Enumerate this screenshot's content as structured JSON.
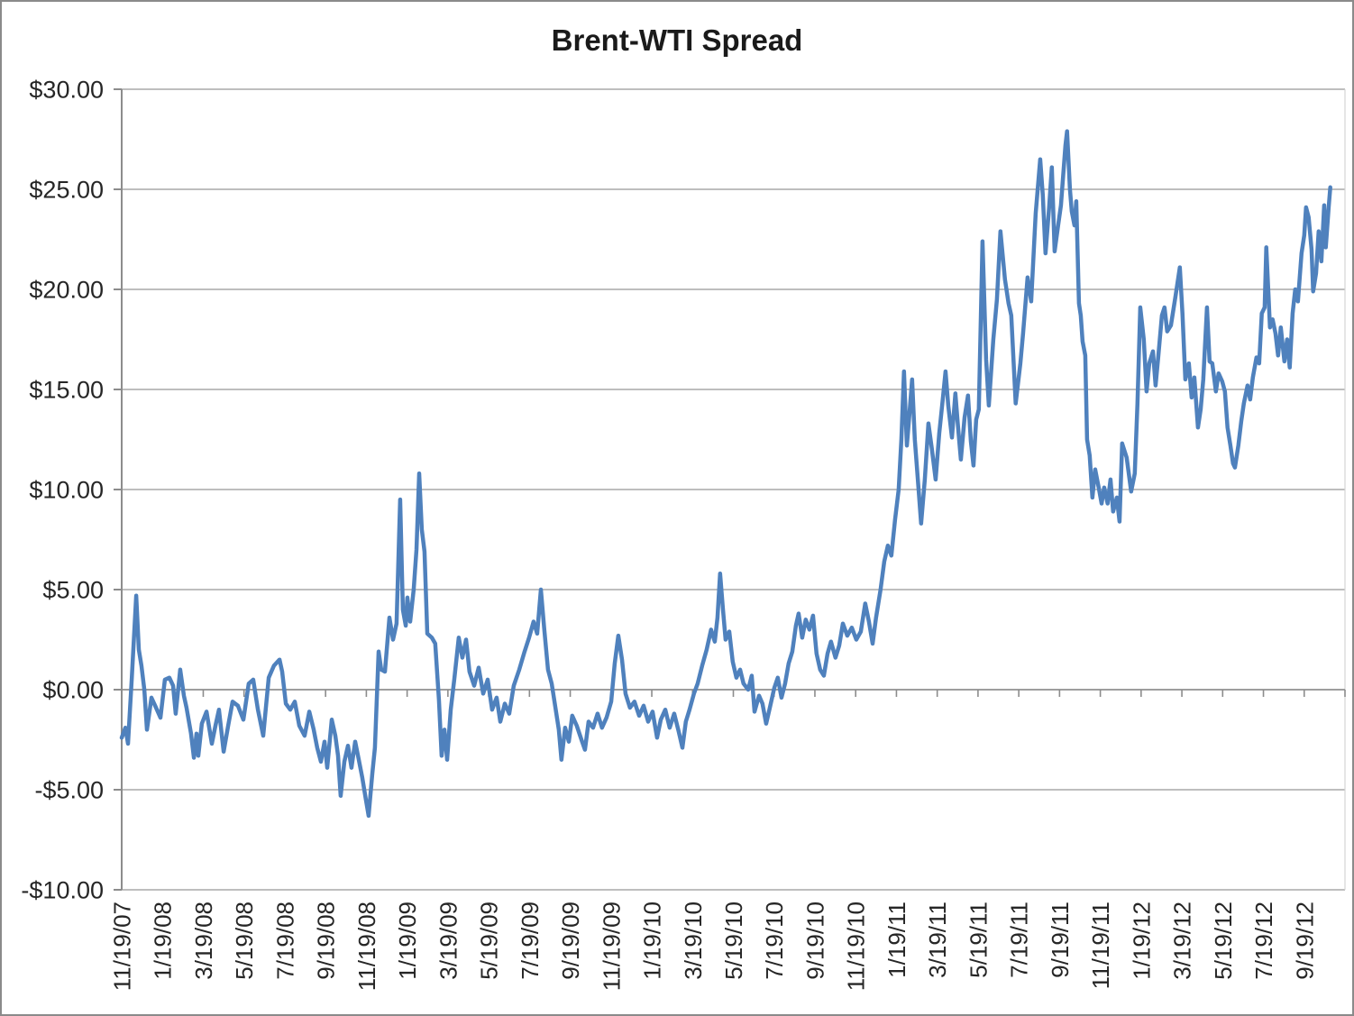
{
  "chart_data": {
    "type": "line",
    "title": "Brent-WTI Spread",
    "series_name": "Brent-WTI Spread",
    "x_unit": "months since 11/19/2007",
    "x_range": [
      0,
      60
    ],
    "y_range": [
      -10,
      30
    ],
    "grid": true,
    "legend": "none",
    "y_tick_values": [
      30,
      25,
      20,
      15,
      10,
      5,
      0,
      -5,
      -10
    ],
    "y_tick_labels": [
      "$30.00",
      "$25.00",
      "$20.00",
      "$15.00",
      "$10.00",
      "$5.00",
      "$0.00",
      "-$5.00",
      "-$10.00"
    ],
    "x_tick_months": [
      0,
      2,
      4,
      6,
      8,
      10,
      12,
      14,
      16,
      18,
      20,
      22,
      24,
      26,
      28,
      30,
      32,
      34,
      36,
      38,
      40,
      42,
      44,
      46,
      48,
      50,
      52,
      54,
      56,
      58
    ],
    "x_tick_labels": [
      "11/19/07",
      "1/19/08",
      "3/19/08",
      "5/19/08",
      "7/19/08",
      "9/19/08",
      "11/19/08",
      "1/19/09",
      "3/19/09",
      "5/19/09",
      "7/19/09",
      "9/19/09",
      "11/19/09",
      "1/19/10",
      "3/19/10",
      "5/19/10",
      "7/19/10",
      "9/19/10",
      "11/19/10",
      "1/19/11",
      "3/19/11",
      "5/19/11",
      "7/19/11",
      "9/19/11",
      "11/19/11",
      "1/19/12",
      "3/19/12",
      "5/19/12",
      "7/19/12",
      "9/19/12"
    ],
    "colors": {
      "line": "#4F81BD",
      "gridline": "#A8A8A8",
      "axis": "#8C8C8C",
      "plot_right_border": "#D4D4D4",
      "text": "#262626",
      "title_text": "#1a1a1a",
      "frame_border": "#8a8a8a"
    },
    "points": [
      [
        0.0,
        -2.4
      ],
      [
        0.18,
        -1.9
      ],
      [
        0.31,
        -2.7
      ],
      [
        0.49,
        0.5
      ],
      [
        0.71,
        4.7
      ],
      [
        0.84,
        2.0
      ],
      [
        0.97,
        1.2
      ],
      [
        1.11,
        0.0
      ],
      [
        1.24,
        -2.0
      ],
      [
        1.46,
        -0.4
      ],
      [
        1.64,
        -0.8
      ],
      [
        1.9,
        -1.4
      ],
      [
        2.12,
        0.5
      ],
      [
        2.34,
        0.6
      ],
      [
        2.52,
        0.2
      ],
      [
        2.65,
        -1.2
      ],
      [
        2.87,
        1.0
      ],
      [
        3.05,
        -0.3
      ],
      [
        3.18,
        -0.9
      ],
      [
        3.4,
        -2.2
      ],
      [
        3.54,
        -3.4
      ],
      [
        3.67,
        -2.2
      ],
      [
        3.76,
        -3.3
      ],
      [
        3.93,
        -1.7
      ],
      [
        4.16,
        -1.1
      ],
      [
        4.42,
        -2.7
      ],
      [
        4.6,
        -1.8
      ],
      [
        4.77,
        -1.0
      ],
      [
        5.0,
        -3.1
      ],
      [
        5.22,
        -1.8
      ],
      [
        5.44,
        -0.6
      ],
      [
        5.7,
        -0.8
      ],
      [
        5.97,
        -1.5
      ],
      [
        6.23,
        0.3
      ],
      [
        6.45,
        0.5
      ],
      [
        6.68,
        -1.0
      ],
      [
        6.94,
        -2.3
      ],
      [
        7.21,
        0.6
      ],
      [
        7.47,
        1.2
      ],
      [
        7.74,
        1.5
      ],
      [
        7.87,
        0.9
      ],
      [
        8.05,
        -0.7
      ],
      [
        8.27,
        -1.0
      ],
      [
        8.49,
        -0.6
      ],
      [
        8.71,
        -1.8
      ],
      [
        8.97,
        -2.3
      ],
      [
        9.2,
        -1.1
      ],
      [
        9.42,
        -2.0
      ],
      [
        9.59,
        -2.9
      ],
      [
        9.77,
        -3.6
      ],
      [
        9.95,
        -2.6
      ],
      [
        10.08,
        -3.9
      ],
      [
        10.3,
        -1.5
      ],
      [
        10.48,
        -2.3
      ],
      [
        10.61,
        -3.3
      ],
      [
        10.74,
        -5.3
      ],
      [
        10.92,
        -3.6
      ],
      [
        11.1,
        -2.8
      ],
      [
        11.27,
        -3.9
      ],
      [
        11.45,
        -2.6
      ],
      [
        11.63,
        -3.5
      ],
      [
        11.8,
        -4.4
      ],
      [
        11.98,
        -5.5
      ],
      [
        12.11,
        -6.3
      ],
      [
        12.29,
        -4.2
      ],
      [
        12.42,
        -2.9
      ],
      [
        12.6,
        1.9
      ],
      [
        12.73,
        1.0
      ],
      [
        12.91,
        0.9
      ],
      [
        13.13,
        3.6
      ],
      [
        13.31,
        2.5
      ],
      [
        13.48,
        3.3
      ],
      [
        13.66,
        9.5
      ],
      [
        13.79,
        4.0
      ],
      [
        13.93,
        3.2
      ],
      [
        14.01,
        4.6
      ],
      [
        14.15,
        3.4
      ],
      [
        14.32,
        5.0
      ],
      [
        14.46,
        7.0
      ],
      [
        14.59,
        10.8
      ],
      [
        14.72,
        8.0
      ],
      [
        14.85,
        6.9
      ],
      [
        14.99,
        2.8
      ],
      [
        15.21,
        2.6
      ],
      [
        15.38,
        2.3
      ],
      [
        15.56,
        -0.5
      ],
      [
        15.69,
        -3.3
      ],
      [
        15.83,
        -2.0
      ],
      [
        15.96,
        -3.5
      ],
      [
        16.14,
        -1.0
      ],
      [
        16.31,
        0.5
      ],
      [
        16.53,
        2.6
      ],
      [
        16.71,
        1.6
      ],
      [
        16.89,
        2.5
      ],
      [
        17.06,
        0.9
      ],
      [
        17.29,
        0.2
      ],
      [
        17.51,
        1.1
      ],
      [
        17.73,
        -0.2
      ],
      [
        17.95,
        0.5
      ],
      [
        18.17,
        -1.0
      ],
      [
        18.39,
        -0.4
      ],
      [
        18.57,
        -1.6
      ],
      [
        18.79,
        -0.7
      ],
      [
        19.01,
        -1.2
      ],
      [
        19.23,
        0.2
      ],
      [
        19.5,
        1.0
      ],
      [
        19.76,
        1.9
      ],
      [
        19.98,
        2.6
      ],
      [
        20.2,
        3.4
      ],
      [
        20.38,
        2.8
      ],
      [
        20.56,
        5.0
      ],
      [
        20.73,
        3.0
      ],
      [
        20.91,
        1.0
      ],
      [
        21.09,
        0.3
      ],
      [
        21.26,
        -0.8
      ],
      [
        21.44,
        -2.0
      ],
      [
        21.57,
        -3.5
      ],
      [
        21.75,
        -1.9
      ],
      [
        21.93,
        -2.6
      ],
      [
        22.1,
        -1.3
      ],
      [
        22.32,
        -1.8
      ],
      [
        22.55,
        -2.5
      ],
      [
        22.72,
        -3.0
      ],
      [
        22.9,
        -1.6
      ],
      [
        23.12,
        -1.9
      ],
      [
        23.34,
        -1.2
      ],
      [
        23.56,
        -1.9
      ],
      [
        23.78,
        -1.4
      ],
      [
        24.01,
        -0.6
      ],
      [
        24.18,
        1.3
      ],
      [
        24.36,
        2.7
      ],
      [
        24.54,
        1.5
      ],
      [
        24.71,
        -0.2
      ],
      [
        24.93,
        -0.9
      ],
      [
        25.15,
        -0.6
      ],
      [
        25.38,
        -1.3
      ],
      [
        25.6,
        -0.8
      ],
      [
        25.82,
        -1.6
      ],
      [
        26.04,
        -1.1
      ],
      [
        26.26,
        -2.4
      ],
      [
        26.44,
        -1.5
      ],
      [
        26.66,
        -1.0
      ],
      [
        26.88,
        -1.9
      ],
      [
        27.1,
        -1.2
      ],
      [
        27.32,
        -2.1
      ],
      [
        27.5,
        -2.9
      ],
      [
        27.67,
        -1.6
      ],
      [
        27.85,
        -1.0
      ],
      [
        28.07,
        -0.2
      ],
      [
        28.25,
        0.3
      ],
      [
        28.47,
        1.2
      ],
      [
        28.69,
        2.0
      ],
      [
        28.91,
        3.0
      ],
      [
        29.09,
        2.4
      ],
      [
        29.22,
        3.6
      ],
      [
        29.35,
        5.8
      ],
      [
        29.49,
        4.0
      ],
      [
        29.62,
        2.5
      ],
      [
        29.8,
        2.9
      ],
      [
        29.97,
        1.4
      ],
      [
        30.15,
        0.6
      ],
      [
        30.33,
        1.0
      ],
      [
        30.5,
        0.3
      ],
      [
        30.73,
        0.0
      ],
      [
        30.9,
        0.7
      ],
      [
        31.04,
        -1.1
      ],
      [
        31.26,
        -0.3
      ],
      [
        31.43,
        -0.7
      ],
      [
        31.61,
        -1.7
      ],
      [
        31.79,
        -0.9
      ],
      [
        32.01,
        0.1
      ],
      [
        32.18,
        0.6
      ],
      [
        32.36,
        -0.4
      ],
      [
        32.54,
        0.3
      ],
      [
        32.71,
        1.3
      ],
      [
        32.89,
        1.9
      ],
      [
        33.07,
        3.2
      ],
      [
        33.2,
        3.8
      ],
      [
        33.38,
        2.6
      ],
      [
        33.55,
        3.5
      ],
      [
        33.73,
        3.0
      ],
      [
        33.91,
        3.7
      ],
      [
        34.08,
        1.8
      ],
      [
        34.26,
        1.0
      ],
      [
        34.44,
        0.7
      ],
      [
        34.62,
        1.8
      ],
      [
        34.79,
        2.4
      ],
      [
        35.01,
        1.6
      ],
      [
        35.19,
        2.2
      ],
      [
        35.37,
        3.3
      ],
      [
        35.59,
        2.7
      ],
      [
        35.81,
        3.1
      ],
      [
        36.03,
        2.5
      ],
      [
        36.25,
        2.9
      ],
      [
        36.47,
        4.3
      ],
      [
        36.65,
        3.4
      ],
      [
        36.83,
        2.3
      ],
      [
        37.0,
        3.6
      ],
      [
        37.22,
        5.0
      ],
      [
        37.4,
        6.4
      ],
      [
        37.58,
        7.2
      ],
      [
        37.75,
        6.7
      ],
      [
        37.93,
        8.5
      ],
      [
        38.11,
        10.0
      ],
      [
        38.24,
        12.5
      ],
      [
        38.37,
        15.9
      ],
      [
        38.51,
        12.2
      ],
      [
        38.64,
        13.8
      ],
      [
        38.77,
        15.5
      ],
      [
        38.9,
        12.5
      ],
      [
        39.04,
        10.6
      ],
      [
        39.21,
        8.3
      ],
      [
        39.39,
        10.5
      ],
      [
        39.57,
        13.3
      ],
      [
        39.74,
        12.0
      ],
      [
        39.92,
        10.5
      ],
      [
        40.1,
        12.8
      ],
      [
        40.27,
        14.5
      ],
      [
        40.41,
        15.9
      ],
      [
        40.54,
        14.2
      ],
      [
        40.72,
        12.6
      ],
      [
        40.89,
        14.8
      ],
      [
        41.03,
        13.0
      ],
      [
        41.16,
        11.5
      ],
      [
        41.34,
        13.6
      ],
      [
        41.51,
        14.7
      ],
      [
        41.65,
        12.4
      ],
      [
        41.78,
        11.2
      ],
      [
        41.91,
        13.5
      ],
      [
        42.04,
        14.0
      ],
      [
        42.22,
        22.4
      ],
      [
        42.4,
        16.5
      ],
      [
        42.53,
        14.2
      ],
      [
        42.75,
        17.5
      ],
      [
        42.93,
        19.5
      ],
      [
        43.1,
        22.9
      ],
      [
        43.32,
        20.5
      ],
      [
        43.5,
        19.3
      ],
      [
        43.63,
        18.7
      ],
      [
        43.85,
        14.3
      ],
      [
        44.08,
        16.3
      ],
      [
        44.21,
        17.8
      ],
      [
        44.43,
        20.6
      ],
      [
        44.61,
        19.4
      ],
      [
        44.83,
        23.8
      ],
      [
        45.05,
        26.5
      ],
      [
        45.18,
        24.7
      ],
      [
        45.31,
        21.8
      ],
      [
        45.49,
        24.1
      ],
      [
        45.62,
        26.1
      ],
      [
        45.76,
        21.9
      ],
      [
        45.93,
        23.2
      ],
      [
        46.07,
        24.2
      ],
      [
        46.29,
        27.2
      ],
      [
        46.37,
        27.9
      ],
      [
        46.51,
        25.0
      ],
      [
        46.6,
        23.9
      ],
      [
        46.73,
        23.2
      ],
      [
        46.82,
        24.4
      ],
      [
        46.95,
        19.3
      ],
      [
        47.04,
        18.7
      ],
      [
        47.13,
        17.4
      ],
      [
        47.26,
        16.7
      ],
      [
        47.35,
        12.5
      ],
      [
        47.48,
        11.7
      ],
      [
        47.61,
        9.6
      ],
      [
        47.75,
        11.0
      ],
      [
        47.92,
        10.1
      ],
      [
        48.06,
        9.3
      ],
      [
        48.19,
        10.1
      ],
      [
        48.36,
        9.3
      ],
      [
        48.5,
        10.5
      ],
      [
        48.63,
        8.9
      ],
      [
        48.81,
        9.6
      ],
      [
        48.94,
        8.4
      ],
      [
        49.07,
        12.3
      ],
      [
        49.29,
        11.6
      ],
      [
        49.51,
        9.9
      ],
      [
        49.69,
        10.8
      ],
      [
        49.82,
        14.3
      ],
      [
        49.96,
        19.1
      ],
      [
        50.13,
        17.5
      ],
      [
        50.27,
        14.9
      ],
      [
        50.4,
        16.3
      ],
      [
        50.58,
        16.9
      ],
      [
        50.71,
        15.2
      ],
      [
        50.84,
        16.6
      ],
      [
        51.02,
        18.7
      ],
      [
        51.15,
        19.1
      ],
      [
        51.28,
        17.9
      ],
      [
        51.46,
        18.2
      ],
      [
        51.68,
        19.6
      ],
      [
        51.9,
        21.1
      ],
      [
        52.03,
        18.8
      ],
      [
        52.17,
        15.5
      ],
      [
        52.34,
        16.3
      ],
      [
        52.48,
        14.6
      ],
      [
        52.61,
        15.6
      ],
      [
        52.79,
        13.1
      ],
      [
        52.92,
        14.0
      ],
      [
        53.05,
        15.5
      ],
      [
        53.23,
        19.1
      ],
      [
        53.36,
        16.4
      ],
      [
        53.49,
        16.3
      ],
      [
        53.67,
        14.9
      ],
      [
        53.8,
        15.8
      ],
      [
        53.98,
        15.4
      ],
      [
        54.11,
        14.9
      ],
      [
        54.24,
        13.1
      ],
      [
        54.38,
        12.2
      ],
      [
        54.51,
        11.3
      ],
      [
        54.6,
        11.1
      ],
      [
        54.77,
        12.2
      ],
      [
        54.91,
        13.4
      ],
      [
        55.04,
        14.3
      ],
      [
        55.22,
        15.2
      ],
      [
        55.35,
        14.5
      ],
      [
        55.48,
        15.6
      ],
      [
        55.66,
        16.6
      ],
      [
        55.79,
        16.3
      ],
      [
        55.92,
        18.8
      ],
      [
        56.06,
        19.1
      ],
      [
        56.14,
        22.1
      ],
      [
        56.32,
        18.1
      ],
      [
        56.45,
        18.5
      ],
      [
        56.59,
        17.8
      ],
      [
        56.72,
        16.7
      ],
      [
        56.85,
        18.1
      ],
      [
        57.03,
        16.4
      ],
      [
        57.16,
        17.5
      ],
      [
        57.29,
        16.1
      ],
      [
        57.43,
        18.8
      ],
      [
        57.56,
        20.0
      ],
      [
        57.69,
        19.4
      ],
      [
        57.87,
        21.8
      ],
      [
        58.0,
        22.7
      ],
      [
        58.09,
        24.1
      ],
      [
        58.22,
        23.6
      ],
      [
        58.36,
        22.0
      ],
      [
        58.44,
        19.9
      ],
      [
        58.58,
        20.8
      ],
      [
        58.71,
        22.9
      ],
      [
        58.84,
        21.4
      ],
      [
        58.98,
        24.2
      ],
      [
        59.06,
        22.1
      ],
      [
        59.2,
        24.1
      ],
      [
        59.28,
        25.1
      ]
    ]
  }
}
